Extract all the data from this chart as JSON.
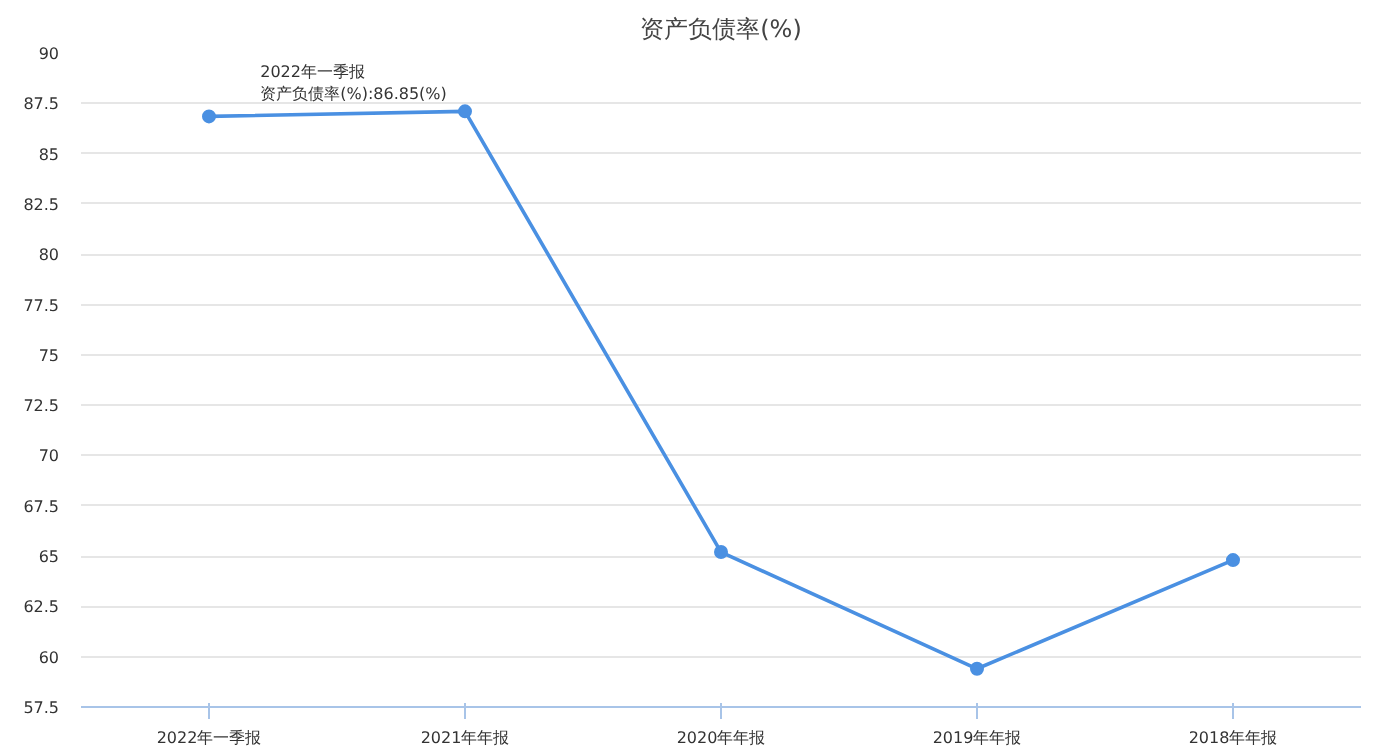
{
  "chart_data": {
    "type": "line",
    "title": "资产负债率(%)",
    "categories": [
      "2022年一季报",
      "2021年年报",
      "2020年年报",
      "2019年年报",
      "2018年年报"
    ],
    "series": [
      {
        "color": "#4a90e2",
        "values": [
          86.85,
          87.1,
          65.2,
          59.4,
          64.8
        ]
      }
    ],
    "ylim": [
      57.5,
      90
    ],
    "yticks": [
      57.5,
      60,
      62.5,
      65,
      67.5,
      70,
      72.5,
      75,
      77.5,
      80,
      82.5,
      85,
      87.5,
      90
    ],
    "grid": "y",
    "marker": "circle",
    "line_style": "solid",
    "annotations": [
      "2022年一季报",
      "资产负债率(%):86.85(%)"
    ]
  }
}
